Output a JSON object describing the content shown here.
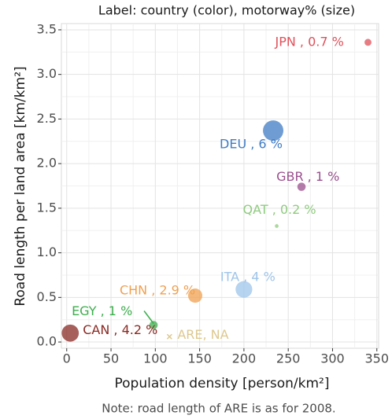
{
  "chart_data": {
    "type": "scatter",
    "title": "Label: country (color), motorway% (size)",
    "x_label": "Population density [person/km²]",
    "y_label": "Road length per land area [km/km²]",
    "note": "Note: road length of ARE is as for 2008.",
    "x": [
      340,
      233,
      265,
      237,
      200,
      145,
      98,
      4,
      116
    ],
    "values": [
      3.36,
      2.37,
      1.74,
      1.3,
      0.59,
      0.52,
      0.19,
      0.1,
      0.06
    ],
    "sizes": [
      0.7,
      6,
      1,
      0.2,
      4,
      2.9,
      1,
      4.2,
      null
    ],
    "point_labels": [
      "JPN , 0.7 %",
      "DEU , 6 %",
      "GBR , 1 %",
      "QAT , 0.2 %",
      "ITA , 4 %",
      "CHN , 2.9 %",
      "EGY , 1 %",
      "CAN , 4.2 %",
      "ARE, NA"
    ],
    "colors": [
      "#e0505a",
      "#3f7cc4",
      "#9a4f8e",
      "#8fcb7f",
      "#9ec4ea",
      "#f0a050",
      "#3cae4c",
      "#8a2a24",
      "#ddc88e"
    ],
    "xlim": [
      -6,
      352
    ],
    "ylim": [
      -0.07,
      3.57
    ],
    "xticks": [
      0,
      50,
      100,
      150,
      200,
      250,
      300,
      350
    ],
    "yticks": [
      {
        "value": 0,
        "label": "0.0"
      },
      0.5,
      {
        "value": 1,
        "label": "1.0"
      },
      1.5,
      {
        "value": 2,
        "label": "2.0"
      },
      2.5,
      {
        "value": 3,
        "label": "3.0"
      },
      3.5
    ],
    "grid": true
  }
}
